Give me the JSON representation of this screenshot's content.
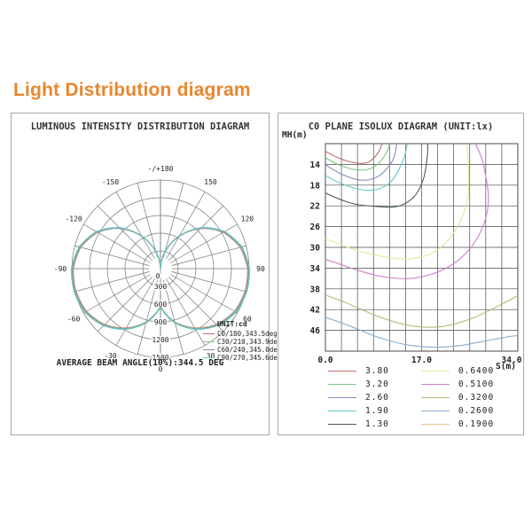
{
  "page_title": {
    "text": "Light Distribution diagram",
    "color": "#E8862E"
  },
  "left_panel": {
    "title": "LUMINOUS INTENSITY DISTRIBUTION DIAGRAM",
    "legend_title": "UNIT:cd",
    "caption": "AVERAGE BEAM ANGLE(10%):344.5 DEG"
  },
  "right_panel": {
    "title": "C0 PLANE ISOLUX DIAGRAM (UNIT:lx)",
    "y_axis_label": "MH(m)",
    "x_axis_label": "S(m)",
    "x_ticks": [
      "0.0",
      "17.0",
      "34.0"
    ],
    "y_ticks": [
      "14",
      "18",
      "22",
      "26",
      "30",
      "34",
      "38",
      "42",
      "46"
    ]
  },
  "chart_data": [
    {
      "type": "line",
      "subtype": "polar-luminous-intensity",
      "title": "LUMINOUS INTENSITY DISTRIBUTION DIAGRAM",
      "unit": "cd",
      "r_max_cd": 1500,
      "radial_rings_cd": [
        300,
        600,
        900,
        1200,
        1500
      ],
      "center_label": "0",
      "angle_ticks": [
        {
          "deg": 0,
          "label": "0"
        },
        {
          "deg": 30,
          "label": "30"
        },
        {
          "deg": 60,
          "label": "60"
        },
        {
          "deg": 90,
          "label": "90"
        },
        {
          "deg": 120,
          "label": "120"
        },
        {
          "deg": 150,
          "label": "150"
        },
        {
          "deg": 180,
          "label": "-/+180"
        },
        {
          "deg": -30,
          "label": "-30"
        },
        {
          "deg": -60,
          "label": "-60"
        },
        {
          "deg": -90,
          "label": "-90"
        },
        {
          "deg": -120,
          "label": "-120"
        },
        {
          "deg": -150,
          "label": "-150"
        }
      ],
      "profile_angles_deg": [
        0,
        15,
        30,
        45,
        60,
        75,
        90,
        105,
        120,
        135,
        150,
        165,
        180
      ],
      "profile_cd": [
        650,
        950,
        1180,
        1360,
        1470,
        1505,
        1500,
        1420,
        1250,
        980,
        640,
        300,
        0
      ],
      "series": [
        {
          "name": "C0/180",
          "legend_label": "C0/180,343.5deg",
          "beam_angle_deg": 343.5,
          "color": "#C46A6A",
          "scale": 0.985
        },
        {
          "name": "C30/210",
          "legend_label": "C30/210,343.9deg",
          "beam_angle_deg": 343.9,
          "color": "#7FC87F",
          "scale": 0.993
        },
        {
          "name": "C60/240",
          "legend_label": "C60/240,345.0deg",
          "beam_angle_deg": 345.0,
          "color": "#8888BB",
          "scale": 1.0
        },
        {
          "name": "C90/270",
          "legend_label": "C90/270,345.6deg",
          "beam_angle_deg": 345.6,
          "color": "#66C6C6",
          "scale": 1.005
        }
      ],
      "average_beam_angle_10pct_deg": 344.5
    },
    {
      "type": "line",
      "subtype": "isolux-contours",
      "title": "C0 PLANE ISOLUX DIAGRAM (UNIT:lx)",
      "xlabel": "S(m)",
      "ylabel": "MH(m)",
      "xlim": [
        0,
        34
      ],
      "ylim": [
        10,
        50
      ],
      "x_gridlines": 12,
      "y_gridlines": 10,
      "x_tick_values": [
        0,
        17,
        34
      ],
      "y_tick_values": [
        14,
        18,
        22,
        26,
        30,
        34,
        38,
        42,
        46
      ],
      "contours": [
        {
          "level_lx": 3.8,
          "label": "3.80",
          "color": "#C46A6A",
          "points": [
            [
              0,
              11.5
            ],
            [
              2,
              12.6
            ],
            [
              4,
              13.4
            ],
            [
              6,
              13.8
            ],
            [
              7.5,
              13.6
            ],
            [
              8.7,
              12.6
            ],
            [
              9.6,
              11.2
            ],
            [
              10,
              10
            ]
          ]
        },
        {
          "level_lx": 3.2,
          "label": "3.20",
          "color": "#7FC87F",
          "points": [
            [
              0,
              12.7
            ],
            [
              2,
              13.9
            ],
            [
              4,
              14.7
            ],
            [
              6,
              15.1
            ],
            [
              7.7,
              14.9
            ],
            [
              9.5,
              13.7
            ],
            [
              10.9,
              11.5
            ],
            [
              11.3,
              10
            ]
          ]
        },
        {
          "level_lx": 2.6,
          "label": "2.60",
          "color": "#8888BB",
          "points": [
            [
              0,
              14.1
            ],
            [
              2,
              15.4
            ],
            [
              4,
              16.4
            ],
            [
              6,
              17.0
            ],
            [
              8,
              16.9
            ],
            [
              10,
              15.8
            ],
            [
              12,
              13.0
            ],
            [
              12.6,
              10
            ]
          ]
        },
        {
          "level_lx": 1.9,
          "label": "1.90",
          "color": "#66C6C6",
          "points": [
            [
              0,
              16.1
            ],
            [
              2,
              17.3
            ],
            [
              4,
              18.2
            ],
            [
              6,
              18.8
            ],
            [
              8,
              19.0
            ],
            [
              10,
              18.5
            ],
            [
              12,
              16.8
            ],
            [
              13.8,
              13.0
            ],
            [
              14.5,
              10
            ]
          ]
        },
        {
          "level_lx": 1.3,
          "label": "1.30",
          "color": "#4A5A5A",
          "points": [
            [
              0,
              19.5
            ],
            [
              2,
              20.5
            ],
            [
              4,
              21.3
            ],
            [
              6,
              21.8
            ],
            [
              9,
              22.1
            ],
            [
              12,
              22.2
            ],
            [
              14,
              21.6
            ],
            [
              16,
              19.8
            ],
            [
              17.4,
              16.5
            ],
            [
              18,
              12.5
            ],
            [
              18.1,
              10
            ]
          ]
        },
        {
          "level_lx": 0.64,
          "label": "0.6400",
          "color": "#E6E696",
          "points": [
            [
              0,
              28.3
            ],
            [
              3,
              29.6
            ],
            [
              6,
              30.7
            ],
            [
              9,
              31.5
            ],
            [
              12,
              32.1
            ],
            [
              15,
              32.2
            ],
            [
              18,
              31.5
            ],
            [
              20,
              30.3
            ],
            [
              22,
              28.2
            ],
            [
              23.8,
              25.0
            ],
            [
              25.2,
              20.5
            ],
            [
              25.3,
              15.0
            ],
            [
              25.0,
              10
            ]
          ]
        },
        {
          "level_lx": 0.51,
          "label": "0.5100",
          "color": "#CC7FCC",
          "points": [
            [
              0,
              32.3
            ],
            [
              3,
              33.4
            ],
            [
              6,
              34.5
            ],
            [
              9,
              35.4
            ],
            [
              12,
              35.9
            ],
            [
              15,
              36.0
            ],
            [
              18,
              35.4
            ],
            [
              21,
              34.2
            ],
            [
              24,
              32.0
            ],
            [
              26.5,
              28.8
            ],
            [
              28.3,
              24.5
            ],
            [
              28.8,
              20.0
            ],
            [
              27.8,
              13.5
            ],
            [
              26.5,
              10
            ]
          ]
        },
        {
          "level_lx": 0.32,
          "label": "0.3200",
          "color": "#B9B97A",
          "points": [
            [
              0,
              39.2
            ],
            [
              3,
              40.4
            ],
            [
              6,
              41.8
            ],
            [
              9,
              43.2
            ],
            [
              12,
              44.3
            ],
            [
              15,
              45.1
            ],
            [
              18,
              45.4
            ],
            [
              21,
              45.2
            ],
            [
              24,
              44.4
            ],
            [
              27,
              43.2
            ],
            [
              30,
              41.6
            ],
            [
              32.5,
              40.2
            ],
            [
              34,
              39.3
            ]
          ]
        },
        {
          "level_lx": 0.26,
          "label": "0.2600",
          "color": "#85AED0",
          "points": [
            [
              0,
              43.5
            ],
            [
              3,
              44.6
            ],
            [
              6,
              45.9
            ],
            [
              9,
              47.2
            ],
            [
              12,
              48.2
            ],
            [
              15,
              48.9
            ],
            [
              18,
              49.2
            ],
            [
              21,
              49.2
            ],
            [
              24,
              48.9
            ],
            [
              27,
              48.3
            ],
            [
              30,
              47.7
            ],
            [
              32.5,
              47.2
            ],
            [
              34,
              47.0
            ]
          ]
        },
        {
          "level_lx": 0.19,
          "label": "0.1900",
          "color": "#E7C18F",
          "points": [
            [
              0,
              51.5
            ],
            [
              6,
              53.0
            ],
            [
              12,
              54.0
            ],
            [
              18,
              54.5
            ],
            [
              24,
              54.2
            ],
            [
              30,
              53.5
            ],
            [
              34,
              53.0
            ]
          ]
        }
      ]
    }
  ]
}
